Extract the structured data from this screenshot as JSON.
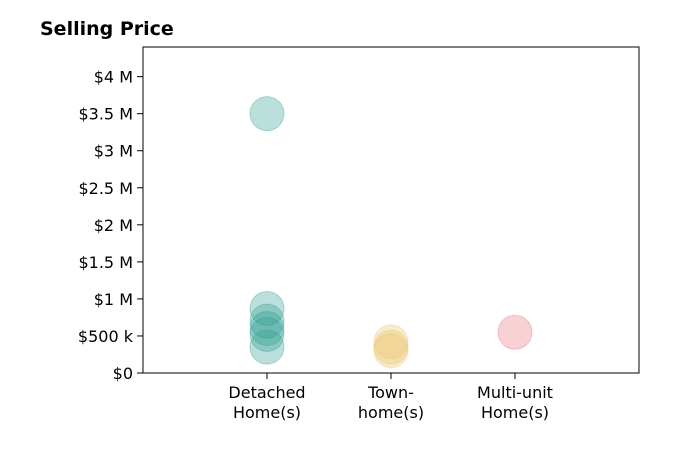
{
  "chart_data": {
    "type": "scatter",
    "title": "Selling Price",
    "xlabel": "",
    "ylabel": "",
    "categories": [
      [
        "Detached",
        "Home(s)"
      ],
      [
        "Town-",
        "home(s)"
      ],
      [
        "Multi-unit",
        "Home(s)"
      ]
    ],
    "ylim": [
      0,
      4400000
    ],
    "yticks": [
      {
        "value": 0,
        "label": "$0"
      },
      {
        "value": 500000,
        "label": "$500 k"
      },
      {
        "value": 1000000,
        "label": "$1 M"
      },
      {
        "value": 1500000,
        "label": "$1.5 M"
      },
      {
        "value": 2000000,
        "label": "$2 M"
      },
      {
        "value": 2500000,
        "label": "$2.5 M"
      },
      {
        "value": 3000000,
        "label": "$3 M"
      },
      {
        "value": 3500000,
        "label": "$3.5 M"
      },
      {
        "value": 4000000,
        "label": "$4 M"
      }
    ],
    "grid": false,
    "series": [
      {
        "category_index": 0,
        "color": "#2a9d8f",
        "values": [
          3500000,
          870000,
          700000,
          600000,
          520000,
          350000
        ]
      },
      {
        "category_index": 1,
        "color": "#e9c46a",
        "values": [
          420000,
          350000,
          300000
        ]
      },
      {
        "category_index": 2,
        "color": "#e76f7a",
        "values": [
          550000
        ]
      }
    ]
  }
}
